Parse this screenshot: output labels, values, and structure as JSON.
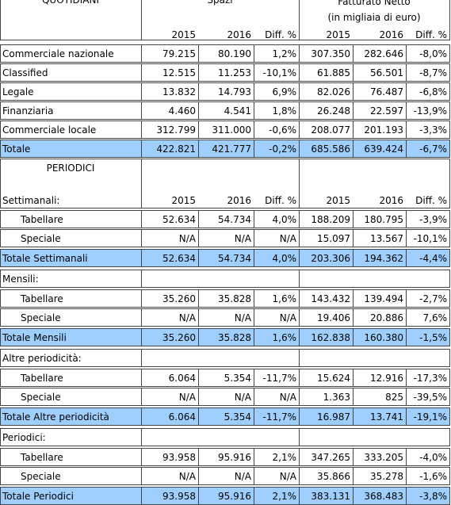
{
  "header": {
    "quotidiani": "QUOTIDIANI",
    "spazi": "Spazi",
    "fatturato": "Fatturato Netto",
    "unit": "(in migliaia di euro)",
    "columns": [
      "2015",
      "2016",
      "Diff. %",
      "2015",
      "2016",
      "Diff. %"
    ]
  },
  "quotidiani": {
    "rows": [
      {
        "label": "Commerciale nazionale",
        "values": [
          "79.215",
          "80.190",
          "1,2%",
          "307.350",
          "282.646",
          "-8,0%"
        ]
      },
      {
        "label": "Classified",
        "values": [
          "12.515",
          "11.253",
          "-10,1%",
          "61.885",
          "56.501",
          "-8,7%"
        ]
      },
      {
        "label": "Legale",
        "values": [
          "13.832",
          "14.793",
          "6,9%",
          "82.026",
          "76.487",
          "-6,8%"
        ]
      },
      {
        "label": "Finanziaria",
        "values": [
          "4.460",
          "4.541",
          "1,8%",
          "26.248",
          "22.597",
          "-13,9%"
        ]
      },
      {
        "label": "Commerciale locale",
        "values": [
          "312.799",
          "311.000",
          "-0,6%",
          "208.077",
          "201.193",
          "-3,3%"
        ]
      }
    ],
    "total": {
      "label": "Totale",
      "values": [
        "422.821",
        "421.777",
        "-0,2%",
        "685.586",
        "639.424",
        "-6,7%"
      ]
    }
  },
  "periodici": {
    "title": "PERIODICI",
    "groups": [
      {
        "label": "Settimanali:",
        "columns": [
          "2015",
          "2016",
          "Diff. %",
          "2015",
          "2016",
          "Diff. %"
        ],
        "rows": [
          {
            "label": "Tabellare",
            "values": [
              "52.634",
              "54.734",
              "4,0%",
              "188.209",
              "180.795",
              "-3,9%"
            ]
          },
          {
            "label": "Speciale",
            "values": [
              "N/A",
              "N/A",
              "N/A",
              "15.097",
              "13.567",
              "-10,1%"
            ]
          }
        ],
        "total": {
          "label": "Totale Settimanali",
          "values": [
            "52.634",
            "54.734",
            "4,0%",
            "203.306",
            "194.362",
            "-4,4%"
          ]
        }
      },
      {
        "label": "Mensili:",
        "rows": [
          {
            "label": "Tabellare",
            "values": [
              "35.260",
              "35.828",
              "1,6%",
              "143.432",
              "139.494",
              "-2,7%"
            ]
          },
          {
            "label": "Speciale",
            "values": [
              "N/A",
              "N/A",
              "N/A",
              "19.406",
              "20.886",
              "7,6%"
            ]
          }
        ],
        "total": {
          "label": "Totale Mensili",
          "values": [
            "35.260",
            "35.828",
            "1,6%",
            "162.838",
            "160.380",
            "-1,5%"
          ]
        }
      },
      {
        "label": "Altre periodicità:",
        "rows": [
          {
            "label": "Tabellare",
            "values": [
              "6.064",
              "5.354",
              "-11,7%",
              "15.624",
              "12.916",
              "-17,3%"
            ]
          },
          {
            "label": "Speciale",
            "values": [
              "N/A",
              "N/A",
              "N/A",
              "1.363",
              "825",
              "-39,5%"
            ]
          }
        ],
        "total": {
          "label": "Totale Altre periodicità",
          "values": [
            "6.064",
            "5.354",
            "-11,7%",
            "16.987",
            "13.741",
            "-19,1%"
          ]
        }
      },
      {
        "label": "Periodici:",
        "rows": [
          {
            "label": "Tabellare",
            "values": [
              "93.958",
              "95.916",
              "2,1%",
              "347.265",
              "333.205",
              "-4,0%"
            ]
          },
          {
            "label": "Speciale",
            "values": [
              "N/A",
              "N/A",
              "N/A",
              "35.866",
              "35.278",
              "-1,6%"
            ]
          }
        ],
        "total": {
          "label": "Totale Periodici",
          "values": [
            "93.958",
            "95.916",
            "2,1%",
            "383.131",
            "368.483",
            "-3,8%"
          ]
        }
      }
    ]
  }
}
